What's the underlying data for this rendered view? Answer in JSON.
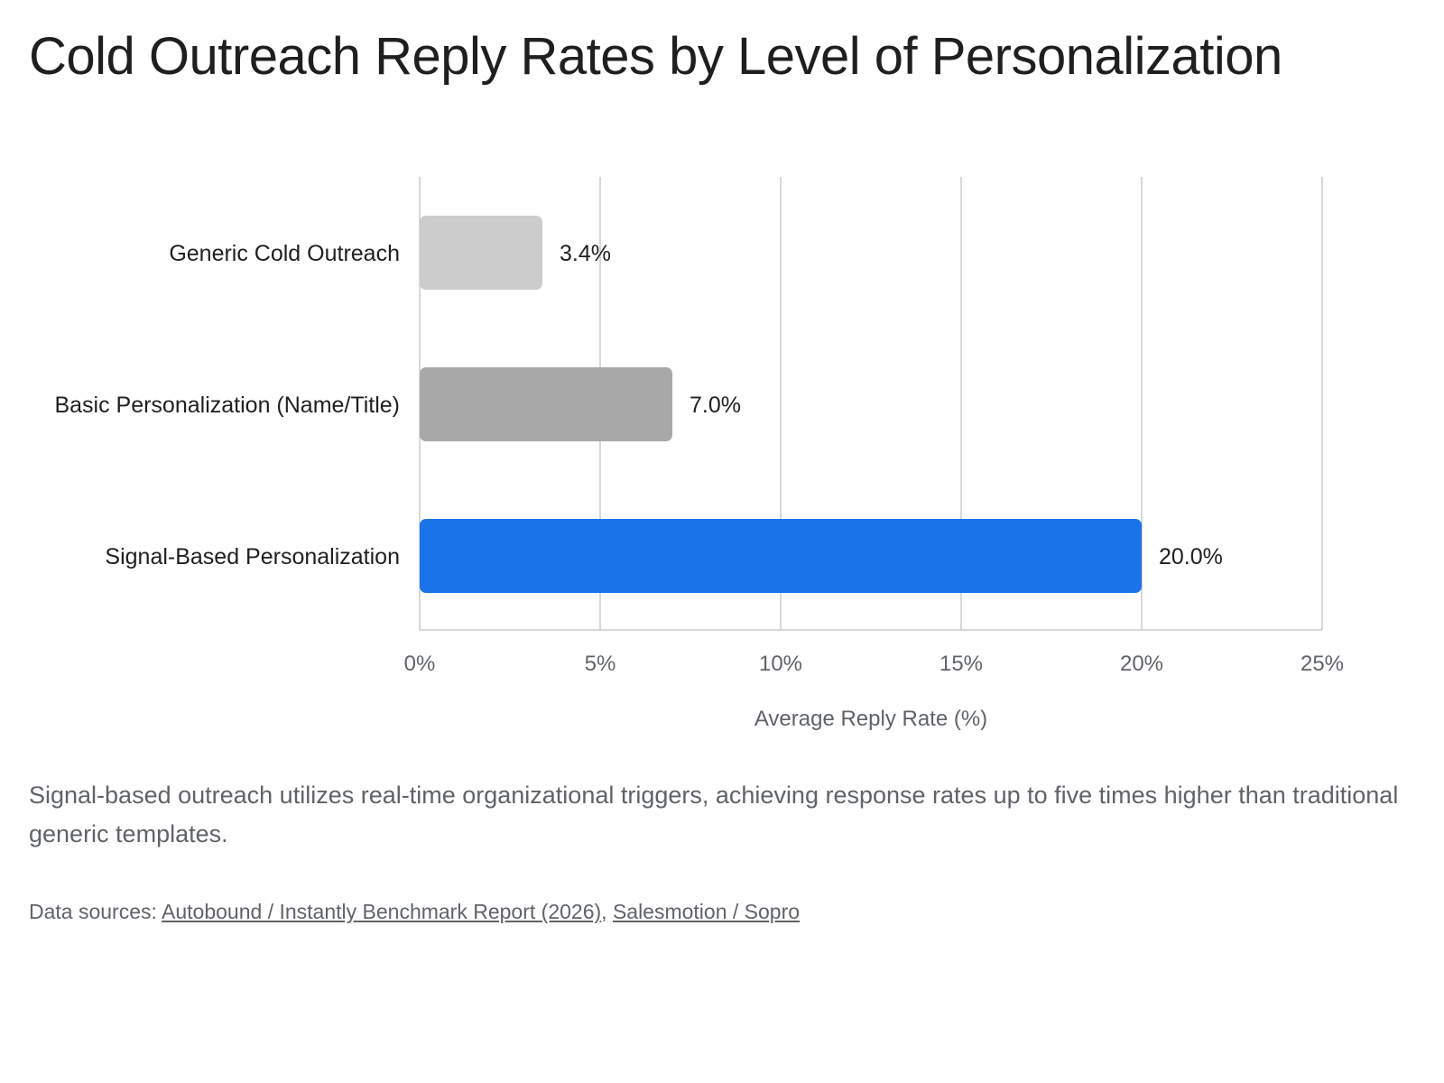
{
  "title": "Cold Outreach Reply Rates by Level of Personalization",
  "caption": "Signal-based outreach utilizes real-time organizational triggers, achieving response rates up to five times higher than traditional generic templates.",
  "sources": {
    "prefix": "Data sources:",
    "links": [
      "Autobound / Instantly Benchmark Report (2026)",
      "Salesmotion / Sopro"
    ],
    "separator": ","
  },
  "colors": {
    "text": "#1f1f1f",
    "muted": "#5f6368",
    "grid": "#cccccc",
    "bars": [
      "#cccccc",
      "#a8a8a8",
      "#1a73e8"
    ]
  },
  "chart_data": {
    "type": "bar",
    "orientation": "horizontal",
    "title": "",
    "categories": [
      "Generic Cold Outreach",
      "Basic Personalization (Name/Title)",
      "Signal-Based Personalization"
    ],
    "values": [
      3.4,
      7.0,
      20.0
    ],
    "data_labels": [
      "3.4%",
      "7.0%",
      "20.0%"
    ],
    "xlabel": "Average Reply Rate (%)",
    "ylabel": "",
    "xlim": [
      0,
      25
    ],
    "x_ticks": [
      0,
      5,
      10,
      15,
      20,
      25
    ],
    "x_tick_labels": [
      "0%",
      "5%",
      "10%",
      "15%",
      "20%",
      "25%"
    ],
    "grid": "vertical",
    "legend": "none"
  }
}
